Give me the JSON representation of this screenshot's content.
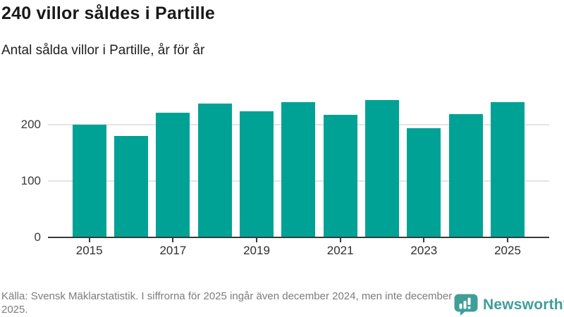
{
  "header": {
    "title": "240 villor såldes i Partille",
    "subtitle": "Antal sålda villor i Partille, år för år"
  },
  "chart_data": {
    "type": "bar",
    "title": "240 villor såldes i Partille",
    "subtitle": "Antal sålda villor i Partille, år för år",
    "categories": [
      "2015",
      "2016",
      "2017",
      "2018",
      "2019",
      "2020",
      "2021",
      "2022",
      "2023",
      "2024",
      "2025"
    ],
    "values": [
      200,
      180,
      221,
      238,
      224,
      240,
      217,
      244,
      194,
      219,
      240
    ],
    "xlabel": "",
    "ylabel": "",
    "ylim": [
      0,
      250
    ],
    "yticks": [
      0,
      100,
      200
    ],
    "labeled_xticks": [
      "2015",
      "2017",
      "2019",
      "2021",
      "2023",
      "2025"
    ],
    "grid": "horizontal",
    "legend": "none"
  },
  "footer": {
    "source_text": "Källa: Svensk Mäklarstatistik. I siffrorna för 2025 ingår även december 2024, men inte december 2025.",
    "logo_text": "Newsworthy"
  },
  "colors": {
    "bar": "#00a296",
    "axis": "#3a3a3a",
    "gridline": "#e4e4e4",
    "title": "#191919",
    "footer_text": "#7c7c7c",
    "logo": "#3f9e98"
  }
}
